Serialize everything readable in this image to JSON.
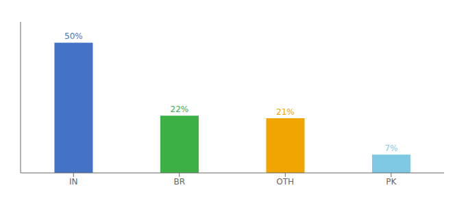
{
  "chart_data": {
    "type": "bar",
    "categories": [
      "IN",
      "BR",
      "OTH",
      "PK"
    ],
    "values": [
      50,
      22,
      21,
      7
    ],
    "value_labels": [
      "50%",
      "22%",
      "21%",
      "7%"
    ],
    "colors": [
      "#4472c4",
      "#3cb044",
      "#f0a500",
      "#7ec8e3"
    ],
    "ylim": [
      0,
      58
    ],
    "data_labels": true,
    "tick_labels": "x",
    "grid": false
  }
}
